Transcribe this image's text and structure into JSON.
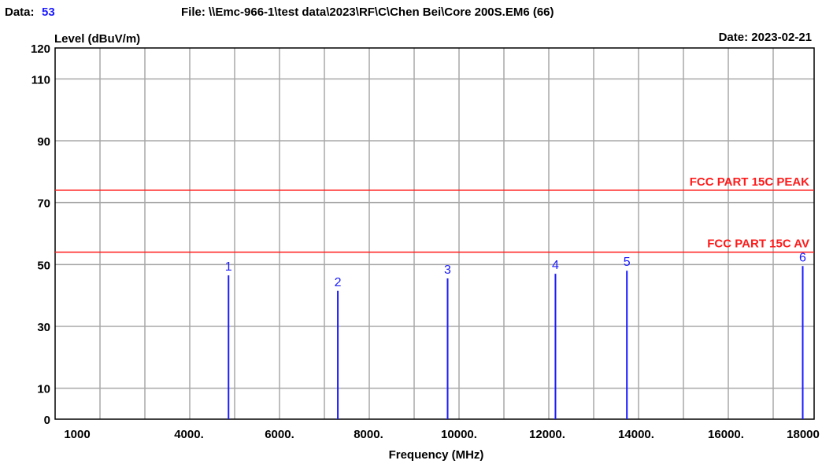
{
  "header": {
    "data_label": "Data:",
    "data_value": "53",
    "file_text": "File: \\\\Emc-966-1\\test data\\2023\\RF\\C\\Chen Bei\\Core 200S.EM6  (66)",
    "date_text": "Date: 2023-02-21"
  },
  "colors": {
    "grid": "#a8a8a8",
    "frame": "#000000",
    "limit": "#ff1a1a",
    "marker": "#1a1aff",
    "header_value": "#1a1aff"
  },
  "chart_data": {
    "type": "line",
    "title": "",
    "xlabel": "Frequency (MHz)",
    "ylabel": "Level (dBuV/m)",
    "xlim": [
      1000,
      18000
    ],
    "ylim": [
      0,
      120
    ],
    "grid": true,
    "x_ticks": [
      {
        "value": 1000,
        "label": "1000"
      },
      {
        "value": 4000,
        "label": "4000."
      },
      {
        "value": 6000,
        "label": "6000."
      },
      {
        "value": 8000,
        "label": "8000."
      },
      {
        "value": 10000,
        "label": "10000."
      },
      {
        "value": 12000,
        "label": "12000."
      },
      {
        "value": 14000,
        "label": "14000."
      },
      {
        "value": 16000,
        "label": "16000."
      },
      {
        "value": 18000,
        "label": "18000"
      }
    ],
    "y_ticks": [
      {
        "value": 0,
        "label": "0"
      },
      {
        "value": 10,
        "label": "10"
      },
      {
        "value": 30,
        "label": "30"
      },
      {
        "value": 50,
        "label": "50"
      },
      {
        "value": 70,
        "label": "70"
      },
      {
        "value": 90,
        "label": "90"
      },
      {
        "value": 110,
        "label": "110"
      },
      {
        "value": 120,
        "label": "120"
      }
    ],
    "y_grid_values": [
      10,
      30,
      50,
      70,
      90,
      110
    ],
    "limit_lines": [
      {
        "name": "FCC PART 15C PEAK",
        "value": 74
      },
      {
        "name": "FCC PART 15C  AV",
        "value": 54
      }
    ],
    "markers": [
      {
        "label": "1",
        "x": 4874,
        "y": 46.5
      },
      {
        "label": "2",
        "x": 7311,
        "y": 41.5
      },
      {
        "label": "3",
        "x": 9748,
        "y": 45.5
      },
      {
        "label": "4",
        "x": 12185,
        "y": 47
      },
      {
        "label": "5",
        "x": 13791,
        "y": 48
      },
      {
        "label": "6",
        "x": 17990,
        "y": 49.5
      }
    ]
  }
}
